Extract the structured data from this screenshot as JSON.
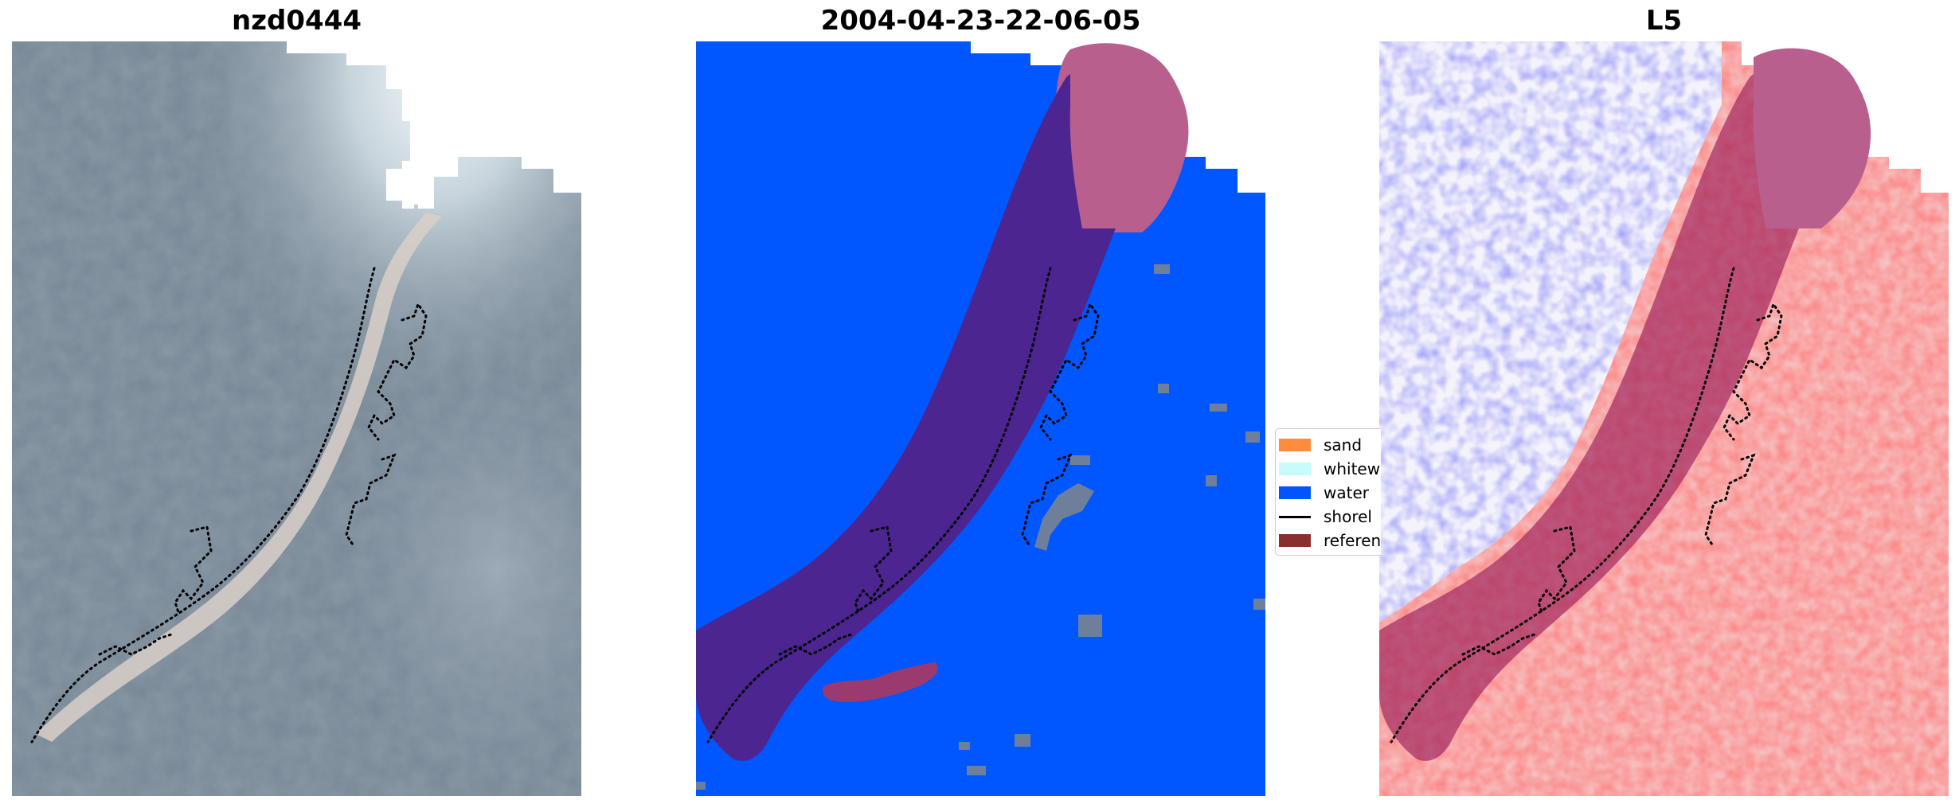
{
  "panels": [
    {
      "title": "nzd0444",
      "kind": "rgb-image"
    },
    {
      "title": "2004-04-23-22-06-05",
      "kind": "classified-image"
    },
    {
      "title": "L5",
      "kind": "index-image"
    }
  ],
  "legend": {
    "placement": "right of middle panel, clipped",
    "items": [
      {
        "label": "sand",
        "color": "#ff8c3a",
        "shape": "patch"
      },
      {
        "label": "whitew",
        "color": "#c8fbfb",
        "shape": "patch"
      },
      {
        "label": "water",
        "color": "#0055ff",
        "shape": "patch"
      },
      {
        "label": "shorel",
        "color": "#000000",
        "shape": "line"
      },
      {
        "label": "referen",
        "color": "#8b2e2e",
        "shape": "patch"
      }
    ]
  },
  "colors": {
    "water": "#0057ff",
    "buffer_overlay": "#9b3a6e",
    "buffer_on_water": "#4b2590",
    "land_gray": "#7a8aa0",
    "shoreline": "#000000"
  }
}
